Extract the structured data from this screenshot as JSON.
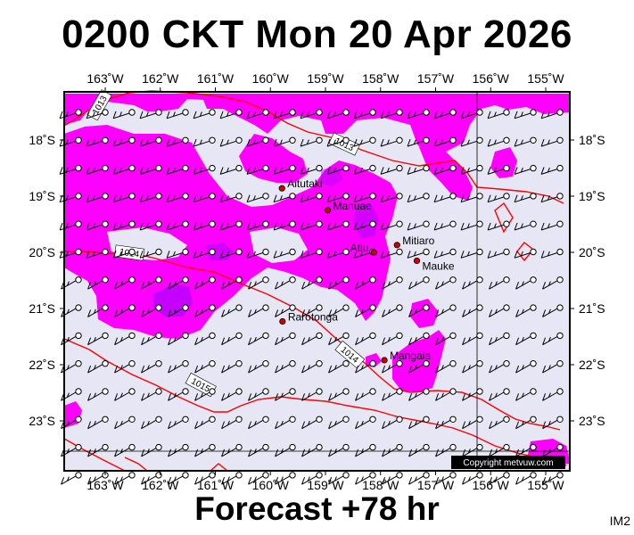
{
  "title": "0200 CKT Mon 20 Apr 2026",
  "subtitle": "Forecast +78 hr",
  "corner_label": "IM2",
  "copyright": "Copyright metvuw.com",
  "colors": {
    "background": "#e6e6f5",
    "rain_light": "#ff00ff",
    "rain_heavy": "#a000ff",
    "isobar": "#ff0000",
    "place_dot": "#cc0000"
  },
  "lon_labels": [
    "163˚W",
    "162˚W",
    "161˚W",
    "160˚W",
    "159˚W",
    "158˚W",
    "157˚W",
    "156˚W",
    "155˚W"
  ],
  "lat_labels": [
    "18˚S",
    "19˚S",
    "20˚S",
    "21˚S",
    "22˚S",
    "23˚S"
  ],
  "isobar_labels": [
    "1013",
    "1013",
    "1014",
    "1014",
    "1015"
  ],
  "places": [
    {
      "name": "Aitutaki",
      "lat": -18.86,
      "lon": -159.79
    },
    {
      "name": "Manuae",
      "lat": -19.25,
      "lon": -158.96
    },
    {
      "name": "Mitiaro",
      "lat": -19.87,
      "lon": -157.7
    },
    {
      "name": "Atiu",
      "lat": -20.0,
      "lon": -158.12
    },
    {
      "name": "Mauke",
      "lat": -20.15,
      "lon": -157.34
    },
    {
      "name": "Rarotonga",
      "lat": -21.23,
      "lon": -159.78
    },
    {
      "name": "Mangaia",
      "lat": -21.92,
      "lon": -157.93
    }
  ]
}
